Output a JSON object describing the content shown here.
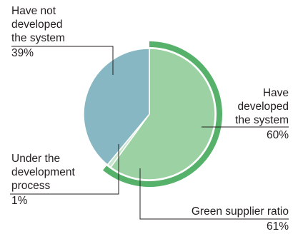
{
  "chart_data": {
    "type": "pie",
    "slices": [
      {
        "label_lines": [
          "Have",
          "developed",
          "the system"
        ],
        "value": 60,
        "value_text": "60%",
        "color": "#9bd1a3"
      },
      {
        "label_lines": [
          "Under the",
          "development",
          "process"
        ],
        "value": 1,
        "value_text": "1%",
        "color": "#c9e6cd"
      },
      {
        "label_lines": [
          "Have not",
          "developed",
          "the system"
        ],
        "value": 39,
        "value_text": "39%",
        "color": "#86b7c3"
      }
    ],
    "outer_ring": {
      "label": "Green supplier ratio",
      "value": 61,
      "value_text": "61%",
      "color": "#56b16a"
    },
    "start_angle_deg": 0,
    "direction": "clockwise"
  }
}
